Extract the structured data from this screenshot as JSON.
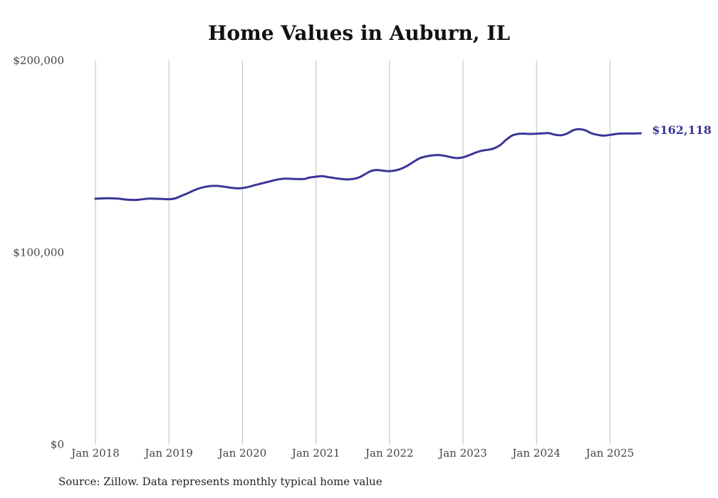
{
  "chart_data": {
    "type": "line",
    "title": "Home Values in Auburn, IL",
    "source": "Source: Zillow. Data represents monthly typical home value",
    "xlabel": "",
    "ylabel": "",
    "ylim": [
      0,
      200000
    ],
    "y_ticks": [
      {
        "value": 0,
        "label": "$0"
      },
      {
        "value": 100000,
        "label": "$100,000"
      },
      {
        "value": 200000,
        "label": "$200,000"
      }
    ],
    "x_ticks": [
      "Jan 2018",
      "Jan 2019",
      "Jan 2020",
      "Jan 2021",
      "Jan 2022",
      "Jan 2023",
      "Jan 2024",
      "Jan 2025"
    ],
    "x_start": "2018-01",
    "grid": "vertical",
    "line_color": "#3b3598",
    "end_label": "$162,118",
    "series": [
      {
        "values": [
          128000,
          128200,
          128300,
          128200,
          128000,
          127600,
          127400,
          127500,
          127900,
          128100,
          128000,
          127900,
          127800,
          128200,
          129500,
          130800,
          132300,
          133500,
          134300,
          134700,
          134700,
          134300,
          133800,
          133500,
          133600,
          134200,
          135100,
          135900,
          136700,
          137500,
          138200,
          138500,
          138400,
          138300,
          138300,
          139100,
          139500,
          139800,
          139300,
          138800,
          138400,
          138100,
          138300,
          139100,
          140800,
          142500,
          143000,
          142600,
          142400,
          142800,
          143800,
          145400,
          147400,
          149200,
          150100,
          150600,
          150800,
          150400,
          149700,
          149200,
          149600,
          150700,
          152000,
          153000,
          153500,
          154200,
          155800,
          158600,
          160900,
          161800,
          161900,
          161800,
          161900,
          162100,
          162200,
          161400,
          161100,
          162000,
          163700,
          164300,
          163600,
          162100,
          161300,
          160900,
          161300,
          161800,
          162000,
          162000,
          162000,
          162118
        ]
      }
    ]
  }
}
